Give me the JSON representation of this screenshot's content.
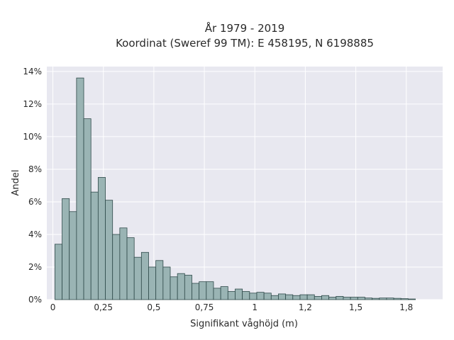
{
  "chart_data": {
    "type": "bar",
    "title_line1": "År 1979 - 2019",
    "title_line2": "Koordinat (Sweref 99 TM): E 458195, N 6198885",
    "xlabel": "Signifikant våghöjd (m)",
    "ylabel": "Andel",
    "xlim": [
      -0.03,
      1.93
    ],
    "ylim": [
      0,
      14.3
    ],
    "x_ticks": [
      0,
      0.25,
      0.5,
      0.75,
      1,
      1.25,
      1.5,
      1.75
    ],
    "x_tick_labels": [
      "0",
      "0,25",
      "0,5",
      "0,75",
      "1",
      "1,2",
      "1,5",
      "1,8"
    ],
    "y_ticks": [
      0,
      2,
      4,
      6,
      8,
      10,
      12,
      14
    ],
    "y_tick_labels": [
      "0%",
      "2%",
      "4%",
      "6%",
      "8%",
      "10%",
      "12%",
      "14%"
    ],
    "grid": true,
    "bin_width": 0.0357,
    "bin_start": 0.01,
    "values": [
      3.4,
      6.2,
      5.4,
      13.6,
      11.1,
      6.6,
      7.5,
      6.1,
      4.0,
      4.4,
      3.8,
      2.6,
      2.9,
      2.0,
      2.4,
      2.0,
      1.4,
      1.6,
      1.5,
      1.0,
      1.1,
      1.1,
      0.7,
      0.8,
      0.5,
      0.65,
      0.5,
      0.4,
      0.45,
      0.4,
      0.25,
      0.35,
      0.3,
      0.25,
      0.3,
      0.3,
      0.2,
      0.25,
      0.15,
      0.2,
      0.15,
      0.15,
      0.15,
      0.1,
      0.08,
      0.1,
      0.1,
      0.08,
      0.06,
      0.04
    ],
    "bar_color": "#9ab4b4",
    "bar_edge": "#2f4a4a",
    "background": "#e8e8f0"
  }
}
